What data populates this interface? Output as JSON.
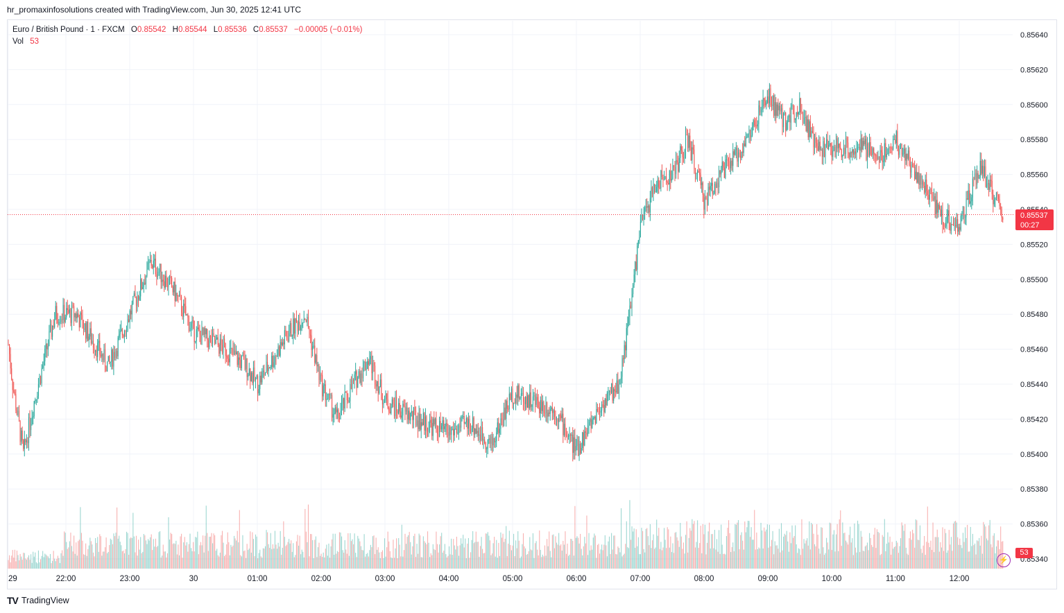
{
  "header": {
    "attribution": "hr_promaxinfosolutions created with TradingView.com, Jun 30, 2025 12:41 UTC"
  },
  "legend": {
    "symbol": "Euro / British Pound · 1 · FXCM",
    "open_label": "O",
    "open": "0.85542",
    "high_label": "H",
    "high": "0.85544",
    "low_label": "L",
    "low": "0.85536",
    "close_label": "C",
    "close": "0.85537",
    "change": "−0.00005 (−0.01%)",
    "vol_label": "Vol",
    "vol": "53"
  },
  "price_tag": {
    "price": "0.85537",
    "countdown": "00:27"
  },
  "vol_tag": "53",
  "footer": {
    "logo_text": "TradingView"
  },
  "colors": {
    "up": "#26a69a",
    "down": "#ef5350",
    "grid": "#f0f3fa",
    "last_price": "#f23645"
  },
  "icons": {
    "bolt": "lightning-bolt-icon"
  },
  "chart_data": {
    "type": "candlestick",
    "symbol": "EUR/GBP",
    "interval": "1m",
    "ylim": [
      0.8533,
      0.85645
    ],
    "y_ticks": [
      "0.85640",
      "0.85620",
      "0.85600",
      "0.85580",
      "0.85560",
      "0.85540",
      "0.85520",
      "0.85500",
      "0.85480",
      "0.85460",
      "0.85440",
      "0.85420",
      "0.85400",
      "0.85380",
      "0.85360",
      "0.85340"
    ],
    "x_ticks": [
      "29",
      "22:00",
      "23:00",
      "30",
      "01:00",
      "02:00",
      "03:00",
      "04:00",
      "05:00",
      "06:00",
      "07:00",
      "08:00",
      "09:00",
      "10:00",
      "11:00",
      "12:00"
    ],
    "last_price": 0.85537,
    "price_path": [
      {
        "t": "21:00",
        "p": 0.85495
      },
      {
        "t": "21:10",
        "p": 0.8544
      },
      {
        "t": "21:20",
        "p": 0.854
      },
      {
        "t": "21:30",
        "p": 0.8543
      },
      {
        "t": "21:50",
        "p": 0.8548
      },
      {
        "t": "22:10",
        "p": 0.8548
      },
      {
        "t": "22:40",
        "p": 0.8545
      },
      {
        "t": "23:00",
        "p": 0.8548
      },
      {
        "t": "23:20",
        "p": 0.8551
      },
      {
        "t": "23:40",
        "p": 0.85495
      },
      {
        "t": "00:00",
        "p": 0.8547
      },
      {
        "t": "00:30",
        "p": 0.8546
      },
      {
        "t": "00:50",
        "p": 0.8545
      },
      {
        "t": "01:00",
        "p": 0.8544
      },
      {
        "t": "01:30",
        "p": 0.8547
      },
      {
        "t": "01:45",
        "p": 0.8548
      },
      {
        "t": "02:00",
        "p": 0.8544
      },
      {
        "t": "02:15",
        "p": 0.8542
      },
      {
        "t": "02:30",
        "p": 0.8544
      },
      {
        "t": "02:45",
        "p": 0.85455
      },
      {
        "t": "03:00",
        "p": 0.8543
      },
      {
        "t": "03:30",
        "p": 0.8542
      },
      {
        "t": "04:00",
        "p": 0.85412
      },
      {
        "t": "04:20",
        "p": 0.85418
      },
      {
        "t": "04:40",
        "p": 0.85405
      },
      {
        "t": "05:00",
        "p": 0.85435
      },
      {
        "t": "05:20",
        "p": 0.8543
      },
      {
        "t": "05:40",
        "p": 0.85425
      },
      {
        "t": "06:00",
        "p": 0.85402
      },
      {
        "t": "06:20",
        "p": 0.85425
      },
      {
        "t": "06:40",
        "p": 0.8544
      },
      {
        "t": "06:50",
        "p": 0.8548
      },
      {
        "t": "07:00",
        "p": 0.8553
      },
      {
        "t": "07:15",
        "p": 0.85555
      },
      {
        "t": "07:30",
        "p": 0.8556
      },
      {
        "t": "07:45",
        "p": 0.8558
      },
      {
        "t": "08:00",
        "p": 0.85545
      },
      {
        "t": "08:15",
        "p": 0.8556
      },
      {
        "t": "08:30",
        "p": 0.8557
      },
      {
        "t": "08:45",
        "p": 0.85585
      },
      {
        "t": "09:00",
        "p": 0.85605
      },
      {
        "t": "09:15",
        "p": 0.8559
      },
      {
        "t": "09:30",
        "p": 0.856
      },
      {
        "t": "09:45",
        "p": 0.85575
      },
      {
        "t": "10:00",
        "p": 0.85575
      },
      {
        "t": "10:30",
        "p": 0.85575
      },
      {
        "t": "10:45",
        "p": 0.8557
      },
      {
        "t": "11:00",
        "p": 0.8558
      },
      {
        "t": "11:15",
        "p": 0.85565
      },
      {
        "t": "11:30",
        "p": 0.8555
      },
      {
        "t": "11:45",
        "p": 0.85535
      },
      {
        "t": "12:00",
        "p": 0.8553
      },
      {
        "t": "12:20",
        "p": 0.85565
      },
      {
        "t": "12:40",
        "p": 0.85537
      }
    ]
  }
}
